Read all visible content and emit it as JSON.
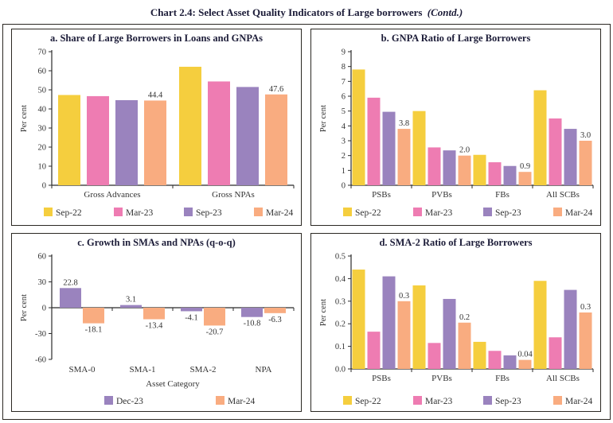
{
  "page_title": {
    "main": "Chart 2.4: Select Asset Quality Indicators of Large borrowers",
    "suffix": "(Contd.)"
  },
  "palette": {
    "sep22": "#F5CE3E",
    "mar23": "#EE7CB2",
    "sep23": "#9A83BE",
    "mar24": "#F9AC80",
    "dec23": "#9A83BE",
    "axis": "#2b2b2b",
    "text": "#333333",
    "title": "#1c1c38"
  },
  "chart_data": [
    {
      "type": "bar",
      "title": "a. Share of Large Borrowers in Loans and GNPAs",
      "ylabel": "Per cent",
      "xlabel": "",
      "ylim": [
        0,
        70
      ],
      "ystep": 10,
      "ydecimals": 0,
      "grid": false,
      "legend_position": "bottom",
      "categories": [
        "Gross Advances",
        "Gross NPAs"
      ],
      "series": [
        {
          "name": "Sep-22",
          "color": "sep22",
          "values": [
            47.3,
            62.1
          ],
          "labels": null
        },
        {
          "name": "Mar-23",
          "color": "mar23",
          "values": [
            46.7,
            54.4
          ],
          "labels": null
        },
        {
          "name": "Sep-23",
          "color": "sep23",
          "values": [
            44.6,
            51.5
          ],
          "labels": null
        },
        {
          "name": "Mar-24",
          "color": "mar24",
          "values": [
            44.4,
            47.6
          ],
          "labels": [
            "44.4",
            "47.6"
          ]
        }
      ]
    },
    {
      "type": "bar",
      "title": "b. GNPA Ratio of Large Borrowers",
      "ylabel": "Per cent",
      "xlabel": "",
      "ylim": [
        0,
        9
      ],
      "ystep": 1,
      "ydecimals": 0,
      "grid": false,
      "legend_position": "bottom",
      "categories": [
        "PSBs",
        "PVBs",
        "FBs",
        "All SCBs"
      ],
      "series": [
        {
          "name": "Sep-22",
          "color": "sep22",
          "values": [
            7.8,
            5.0,
            2.05,
            6.4
          ],
          "labels": null
        },
        {
          "name": "Mar-23",
          "color": "mar23",
          "values": [
            5.9,
            2.55,
            1.55,
            4.5
          ],
          "labels": null
        },
        {
          "name": "Sep-23",
          "color": "sep23",
          "values": [
            4.95,
            2.35,
            1.3,
            3.8
          ],
          "labels": null
        },
        {
          "name": "Mar-24",
          "color": "mar24",
          "values": [
            3.8,
            2.0,
            0.9,
            3.0
          ],
          "labels": [
            "3.8",
            "2.0",
            "0.9",
            "3.0"
          ]
        }
      ]
    },
    {
      "type": "bar",
      "title": "c. Growth in SMAs and NPAs (q-o-q)",
      "ylabel": "Per cent",
      "xlabel": "Asset Category",
      "ylim": [
        -60,
        60
      ],
      "ystep": 30,
      "ydecimals": 0,
      "grid": false,
      "legend_position": "bottom",
      "categories": [
        "SMA-0",
        "SMA-1",
        "SMA-2",
        "NPA"
      ],
      "series": [
        {
          "name": "Dec-23",
          "color": "dec23",
          "values": [
            22.8,
            3.1,
            -4.1,
            -10.8
          ],
          "labels": [
            "22.8",
            "3.1",
            "-4.1",
            "-10.8"
          ]
        },
        {
          "name": "Mar-24",
          "color": "mar24",
          "values": [
            -18.1,
            -13.4,
            -20.7,
            -6.3
          ],
          "labels": [
            "-18.1",
            "-13.4",
            "-20.7",
            "-6.3"
          ]
        }
      ]
    },
    {
      "type": "bar",
      "title": "d. SMA-2 Ratio of Large Borrowers",
      "ylabel": "Per cent",
      "xlabel": "",
      "ylim": [
        0,
        0.5
      ],
      "ystep": 0.1,
      "ydecimals": 1,
      "grid": false,
      "legend_position": "bottom",
      "categories": [
        "PSBs",
        "PVBs",
        "FBs",
        "All SCBs"
      ],
      "series": [
        {
          "name": "Sep-22",
          "color": "sep22",
          "values": [
            0.44,
            0.37,
            0.12,
            0.39
          ],
          "labels": null
        },
        {
          "name": "Mar-23",
          "color": "mar23",
          "values": [
            0.165,
            0.115,
            0.08,
            0.14
          ],
          "labels": null
        },
        {
          "name": "Sep-23",
          "color": "sep23",
          "values": [
            0.41,
            0.31,
            0.06,
            0.35
          ],
          "labels": null
        },
        {
          "name": "Mar-24",
          "color": "mar24",
          "values": [
            0.3,
            0.205,
            0.04,
            0.25
          ],
          "labels": [
            "0.3",
            "0.2",
            "0.04",
            "0.3"
          ]
        }
      ]
    }
  ]
}
